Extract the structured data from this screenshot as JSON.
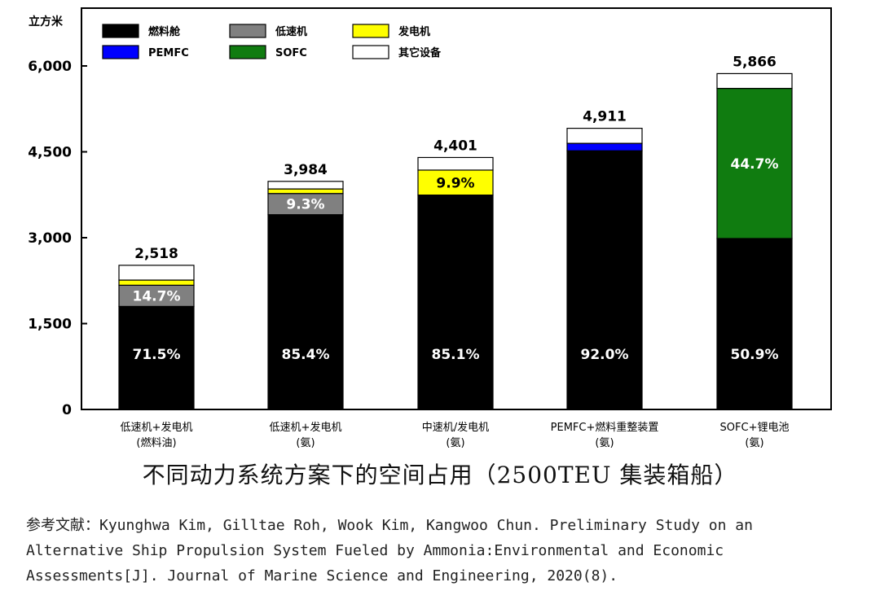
{
  "chart_data": {
    "type": "bar",
    "stacked": true,
    "ylabel": "立方米",
    "ylim": [
      0,
      6000
    ],
    "yticks": [
      "0",
      "1,500",
      "3,000",
      "4,500",
      "6,000"
    ],
    "ytick_values": [
      0,
      1500,
      3000,
      4500,
      6000
    ],
    "grid": false,
    "legend_position": "top-left",
    "categories": [
      [
        "低速机+发电机",
        "(燃料油)"
      ],
      [
        "低速机+发电机",
        "(氨)"
      ],
      [
        "中速机/发电机",
        "(氨)"
      ],
      [
        "PEMFC+燃料重整装置",
        "(氨)"
      ],
      [
        "SOFC+锂电池",
        "(氨)"
      ]
    ],
    "totals": [
      2518,
      3984,
      4401,
      4911,
      5866
    ],
    "total_labels": [
      "2,518",
      "3,984",
      "4,401",
      "4,911",
      "5,866"
    ],
    "series": [
      {
        "name": "燃料舱",
        "color": "#000000",
        "values": [
          1800,
          3402,
          3745,
          4518,
          2986
        ],
        "labels": [
          "71.5%",
          "85.4%",
          "85.1%",
          "92.0%",
          "50.9%"
        ],
        "label_color": "#ffffff"
      },
      {
        "name": "低速机",
        "color": "#808080",
        "values": [
          370,
          370,
          0,
          0,
          0
        ],
        "labels": [
          "14.7%",
          "9.3%",
          "",
          "",
          ""
        ],
        "label_color": "#ffffff"
      },
      {
        "name": "发电机",
        "color": "#ffff00",
        "values": [
          90,
          80,
          436,
          0,
          0
        ],
        "labels": [
          "",
          "",
          "9.9%",
          "",
          ""
        ],
        "label_color": "#000000"
      },
      {
        "name": "PEMFC",
        "color": "#0000ff",
        "values": [
          0,
          0,
          0,
          130,
          0
        ],
        "labels": [
          "",
          "",
          "",
          "",
          ""
        ],
        "label_color": "#ffffff"
      },
      {
        "name": "SOFC",
        "color": "#107c10",
        "values": [
          0,
          0,
          0,
          0,
          2622
        ],
        "labels": [
          "",
          "",
          "",
          "",
          "44.7%"
        ],
        "label_color": "#ffffff"
      },
      {
        "name": "其它设备",
        "color": "#ffffff",
        "values": [
          258,
          132,
          220,
          263,
          258
        ],
        "labels": [
          "",
          "",
          "",
          "",
          ""
        ],
        "label_color": "#000000"
      }
    ]
  },
  "caption": "不同动力系统方案下的空间占用（2500TEU 集装箱船）",
  "reference_lines": [
    "参考文献：Kyunghwa Kim, Gilltae Roh, Wook Kim, Kangwoo Chun. Preliminary Study on an",
    "Alternative Ship Propulsion System Fueled by Ammonia:Environmental and Economic",
    "Assessments[J]. Journal of Marine Science and Engineering, 2020(8)."
  ]
}
